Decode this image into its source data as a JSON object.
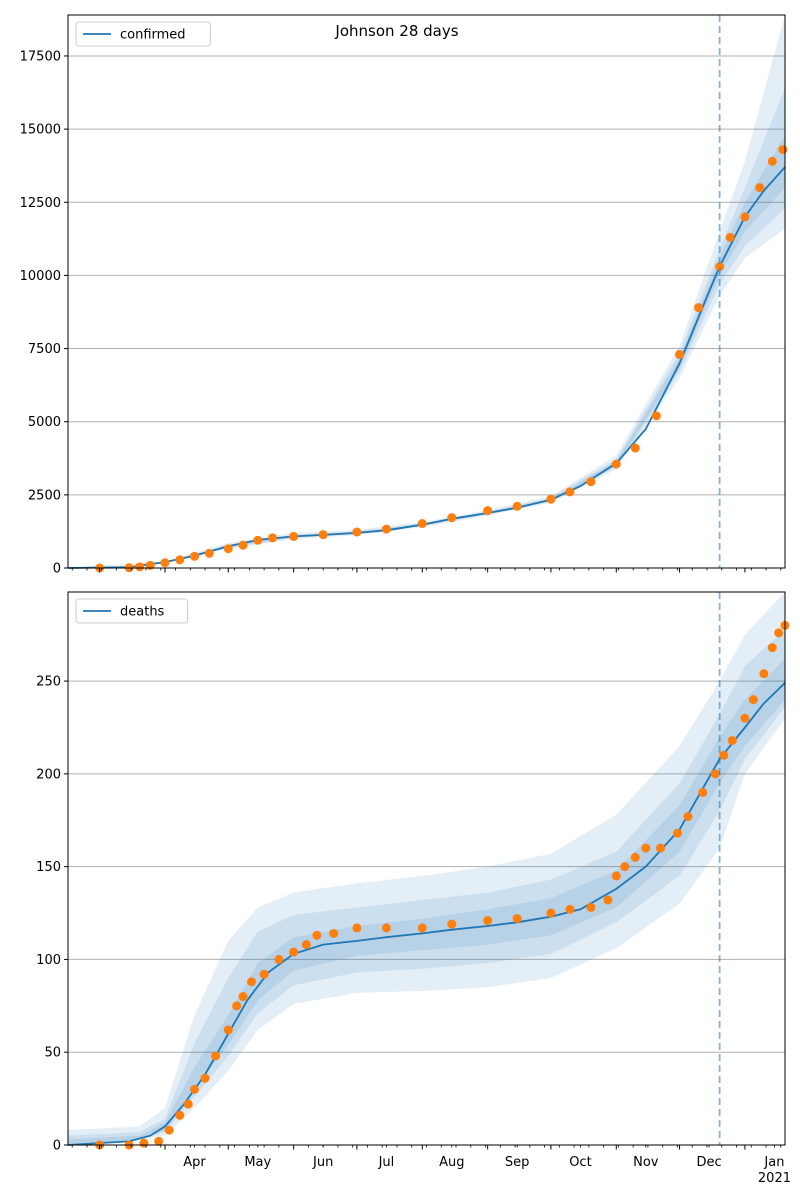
{
  "figure_title": "Johnson 28 days",
  "colors": {
    "model_line": "#1f77b4",
    "observed_points": "#ff7f0e",
    "band": "#1f77b4",
    "forecast_marker": "#1f77b4",
    "grid": "#b0b0b0"
  },
  "chart_data": [
    {
      "type": "line",
      "legend": "confirmed",
      "legend_position": "top-left",
      "grid": "horizontal",
      "x_range": [
        "2020-02-15",
        "2021-01-20"
      ],
      "ylim": [
        0,
        18900
      ],
      "yticks": [
        0,
        2500,
        5000,
        7500,
        10000,
        12500,
        15000,
        17500
      ],
      "forecast_start": "2020-12-20",
      "model": [
        [
          "2020-02-15",
          0
        ],
        [
          "2020-03-15",
          30
        ],
        [
          "2020-04-01",
          200
        ],
        [
          "2020-04-15",
          420
        ],
        [
          "2020-05-01",
          740
        ],
        [
          "2020-05-15",
          960
        ],
        [
          "2020-06-01",
          1080
        ],
        [
          "2020-06-15",
          1130
        ],
        [
          "2020-07-01",
          1200
        ],
        [
          "2020-07-15",
          1290
        ],
        [
          "2020-08-01",
          1480
        ],
        [
          "2020-08-15",
          1680
        ],
        [
          "2020-09-01",
          1880
        ],
        [
          "2020-09-15",
          2060
        ],
        [
          "2020-10-01",
          2330
        ],
        [
          "2020-10-15",
          2800
        ],
        [
          "2020-11-01",
          3580
        ],
        [
          "2020-11-15",
          4750
        ],
        [
          "2020-12-01",
          7000
        ],
        [
          "2020-12-15",
          9450
        ],
        [
          "2020-12-20",
          10300
        ],
        [
          "2021-01-01",
          12000
        ],
        [
          "2021-01-10",
          12900
        ],
        [
          "2021-01-20",
          13700
        ]
      ],
      "bands": [
        [
          [
            "2020-02-15",
            0,
            0
          ],
          [
            "2020-04-01",
            180,
            230
          ],
          [
            "2020-05-01",
            650,
            860
          ],
          [
            "2020-06-01",
            990,
            1200
          ],
          [
            "2020-07-01",
            1120,
            1300
          ],
          [
            "2020-08-01",
            1390,
            1580
          ],
          [
            "2020-09-01",
            1790,
            1980
          ],
          [
            "2020-10-01",
            2230,
            2450
          ],
          [
            "2020-11-01",
            3380,
            3850
          ],
          [
            "2020-12-01",
            6500,
            7600
          ],
          [
            "2020-12-20",
            9300,
            11500
          ],
          [
            "2021-01-01",
            10600,
            13900
          ],
          [
            "2021-01-20",
            11600,
            18900
          ]
        ],
        [
          [
            "2020-02-15",
            0,
            0
          ],
          [
            "2020-04-01",
            190,
            215
          ],
          [
            "2020-05-01",
            690,
            800
          ],
          [
            "2020-06-01",
            1030,
            1140
          ],
          [
            "2020-07-01",
            1160,
            1250
          ],
          [
            "2020-08-01",
            1430,
            1530
          ],
          [
            "2020-09-01",
            1830,
            1930
          ],
          [
            "2020-10-01",
            2270,
            2400
          ],
          [
            "2020-11-01",
            3450,
            3720
          ],
          [
            "2020-12-01",
            6700,
            7350
          ],
          [
            "2020-12-20",
            9700,
            10900
          ],
          [
            "2021-01-01",
            11000,
            13000
          ],
          [
            "2021-01-20",
            12300,
            16400
          ]
        ],
        [
          [
            "2020-02-15",
            0,
            0
          ],
          [
            "2020-04-01",
            195,
            207
          ],
          [
            "2020-05-01",
            715,
            770
          ],
          [
            "2020-06-01",
            1055,
            1110
          ],
          [
            "2020-07-01",
            1180,
            1225
          ],
          [
            "2020-08-01",
            1455,
            1505
          ],
          [
            "2020-09-01",
            1855,
            1905
          ],
          [
            "2020-10-01",
            2300,
            2365
          ],
          [
            "2020-11-01",
            3510,
            3650
          ],
          [
            "2020-12-01",
            6850,
            7170
          ],
          [
            "2020-12-20",
            10000,
            10600
          ],
          [
            "2021-01-01",
            11500,
            12500
          ],
          [
            "2021-01-20",
            13000,
            14800
          ]
        ]
      ],
      "observed": [
        [
          "2020-03-01",
          0
        ],
        [
          "2020-03-15",
          10
        ],
        [
          "2020-03-20",
          40
        ],
        [
          "2020-03-25",
          90
        ],
        [
          "2020-04-01",
          180
        ],
        [
          "2020-04-08",
          280
        ],
        [
          "2020-04-15",
          400
        ],
        [
          "2020-04-22",
          500
        ],
        [
          "2020-05-01",
          660
        ],
        [
          "2020-05-08",
          780
        ],
        [
          "2020-05-15",
          950
        ],
        [
          "2020-05-22",
          1030
        ],
        [
          "2020-06-01",
          1080
        ],
        [
          "2020-06-15",
          1140
        ],
        [
          "2020-07-01",
          1230
        ],
        [
          "2020-07-15",
          1330
        ],
        [
          "2020-08-01",
          1520
        ],
        [
          "2020-08-15",
          1720
        ],
        [
          "2020-09-01",
          1960
        ],
        [
          "2020-09-15",
          2110
        ],
        [
          "2020-10-01",
          2350
        ],
        [
          "2020-10-10",
          2600
        ],
        [
          "2020-10-20",
          2950
        ],
        [
          "2020-11-01",
          3550
        ],
        [
          "2020-11-10",
          4100
        ],
        [
          "2020-11-20",
          5200
        ],
        [
          "2020-12-01",
          7300
        ],
        [
          "2020-12-10",
          8900
        ],
        [
          "2020-12-20",
          10300
        ],
        [
          "2020-12-25",
          11300
        ],
        [
          "2021-01-01",
          12000
        ],
        [
          "2021-01-08",
          13000
        ],
        [
          "2021-01-14",
          13900
        ],
        [
          "2021-01-19",
          14300
        ]
      ]
    },
    {
      "type": "line",
      "legend": "deaths",
      "legend_position": "top-left",
      "grid": "horizontal",
      "x_range": [
        "2020-02-15",
        "2021-01-20"
      ],
      "xtick_labels": [
        "Apr",
        "May",
        "Jun",
        "Jul",
        "Aug",
        "Sep",
        "Oct",
        "Nov",
        "Dec",
        "Jan"
      ],
      "xtick_sublabel": "2021",
      "ylim": [
        0,
        298
      ],
      "yticks": [
        0,
        50,
        100,
        150,
        200,
        250
      ],
      "forecast_start": "2020-12-20",
      "model": [
        [
          "2020-02-15",
          0
        ],
        [
          "2020-03-15",
          2
        ],
        [
          "2020-03-25",
          5
        ],
        [
          "2020-04-01",
          10
        ],
        [
          "2020-04-10",
          22
        ],
        [
          "2020-04-20",
          38
        ],
        [
          "2020-05-01",
          60
        ],
        [
          "2020-05-10",
          78
        ],
        [
          "2020-05-20",
          93
        ],
        [
          "2020-06-01",
          103
        ],
        [
          "2020-06-15",
          108
        ],
        [
          "2020-07-01",
          110
        ],
        [
          "2020-07-15",
          112
        ],
        [
          "2020-08-01",
          114
        ],
        [
          "2020-08-15",
          116
        ],
        [
          "2020-09-01",
          118
        ],
        [
          "2020-09-15",
          120
        ],
        [
          "2020-10-01",
          123
        ],
        [
          "2020-10-15",
          127
        ],
        [
          "2020-11-01",
          138
        ],
        [
          "2020-11-15",
          150
        ],
        [
          "2020-12-01",
          170
        ],
        [
          "2020-12-10",
          188
        ],
        [
          "2020-12-20",
          208
        ],
        [
          "2021-01-01",
          225
        ],
        [
          "2021-01-10",
          238
        ],
        [
          "2021-01-20",
          249
        ]
      ],
      "bands": [
        [
          [
            "2020-02-15",
            0,
            8
          ],
          [
            "2020-03-20",
            3,
            10
          ],
          [
            "2020-04-01",
            5,
            20
          ],
          [
            "2020-04-15",
            20,
            70
          ],
          [
            "2020-05-01",
            40,
            110
          ],
          [
            "2020-05-15",
            62,
            128
          ],
          [
            "2020-06-01",
            76,
            136
          ],
          [
            "2020-07-01",
            82,
            141
          ],
          [
            "2020-08-01",
            83,
            145
          ],
          [
            "2020-09-01",
            85,
            150
          ],
          [
            "2020-10-01",
            90,
            157
          ],
          [
            "2020-11-01",
            106,
            178
          ],
          [
            "2020-12-01",
            130,
            215
          ],
          [
            "2020-12-20",
            160,
            250
          ],
          [
            "2021-01-01",
            200,
            275
          ],
          [
            "2021-01-20",
            230,
            298
          ]
        ],
        [
          [
            "2020-02-15",
            0,
            5
          ],
          [
            "2020-03-20",
            3,
            7
          ],
          [
            "2020-04-01",
            7,
            14
          ],
          [
            "2020-04-15",
            26,
            55
          ],
          [
            "2020-05-01",
            48,
            90
          ],
          [
            "2020-05-15",
            71,
            115
          ],
          [
            "2020-06-01",
            86,
            124
          ],
          [
            "2020-07-01",
            93,
            128
          ],
          [
            "2020-08-01",
            95,
            132
          ],
          [
            "2020-09-01",
            98,
            136
          ],
          [
            "2020-10-01",
            103,
            143
          ],
          [
            "2020-11-01",
            120,
            158
          ],
          [
            "2020-12-01",
            145,
            195
          ],
          [
            "2020-12-20",
            180,
            232
          ],
          [
            "2021-01-01",
            208,
            258
          ],
          [
            "2021-01-20",
            236,
            278
          ]
        ],
        [
          [
            "2020-02-15",
            0,
            3
          ],
          [
            "2020-03-20",
            3,
            5
          ],
          [
            "2020-04-01",
            8,
            12
          ],
          [
            "2020-04-15",
            30,
            42
          ],
          [
            "2020-05-01",
            54,
            70
          ],
          [
            "2020-05-15",
            78,
            98
          ],
          [
            "2020-06-01",
            94,
            112
          ],
          [
            "2020-07-01",
            102,
            118
          ],
          [
            "2020-08-01",
            105,
            122
          ],
          [
            "2020-09-01",
            108,
            127
          ],
          [
            "2020-10-01",
            113,
            133
          ],
          [
            "2020-11-01",
            128,
            148
          ],
          [
            "2020-12-01",
            158,
            183
          ],
          [
            "2020-12-20",
            195,
            220
          ],
          [
            "2021-01-01",
            215,
            240
          ],
          [
            "2021-01-20",
            240,
            262
          ]
        ]
      ],
      "observed": [
        [
          "2020-03-01",
          0
        ],
        [
          "2020-03-15",
          0
        ],
        [
          "2020-03-22",
          1
        ],
        [
          "2020-03-29",
          2
        ],
        [
          "2020-04-03",
          8
        ],
        [
          "2020-04-08",
          16
        ],
        [
          "2020-04-12",
          22
        ],
        [
          "2020-04-15",
          30
        ],
        [
          "2020-04-20",
          36
        ],
        [
          "2020-04-25",
          48
        ],
        [
          "2020-05-01",
          62
        ],
        [
          "2020-05-05",
          75
        ],
        [
          "2020-05-08",
          80
        ],
        [
          "2020-05-12",
          88
        ],
        [
          "2020-05-18",
          92
        ],
        [
          "2020-05-25",
          100
        ],
        [
          "2020-06-01",
          104
        ],
        [
          "2020-06-07",
          108
        ],
        [
          "2020-06-12",
          113
        ],
        [
          "2020-06-20",
          114
        ],
        [
          "2020-07-01",
          117
        ],
        [
          "2020-07-15",
          117
        ],
        [
          "2020-08-01",
          117
        ],
        [
          "2020-08-15",
          119
        ],
        [
          "2020-09-01",
          121
        ],
        [
          "2020-09-15",
          122
        ],
        [
          "2020-10-01",
          125
        ],
        [
          "2020-10-10",
          127
        ],
        [
          "2020-10-20",
          128
        ],
        [
          "2020-10-28",
          132
        ],
        [
          "2020-11-01",
          145
        ],
        [
          "2020-11-05",
          150
        ],
        [
          "2020-11-10",
          155
        ],
        [
          "2020-11-15",
          160
        ],
        [
          "2020-11-22",
          160
        ],
        [
          "2020-11-30",
          168
        ],
        [
          "2020-12-05",
          177
        ],
        [
          "2020-12-12",
          190
        ],
        [
          "2020-12-18",
          200
        ],
        [
          "2020-12-22",
          210
        ],
        [
          "2020-12-26",
          218
        ],
        [
          "2021-01-01",
          230
        ],
        [
          "2021-01-05",
          240
        ],
        [
          "2021-01-10",
          254
        ],
        [
          "2021-01-14",
          268
        ],
        [
          "2021-01-17",
          276
        ],
        [
          "2021-01-20",
          280
        ]
      ]
    }
  ]
}
